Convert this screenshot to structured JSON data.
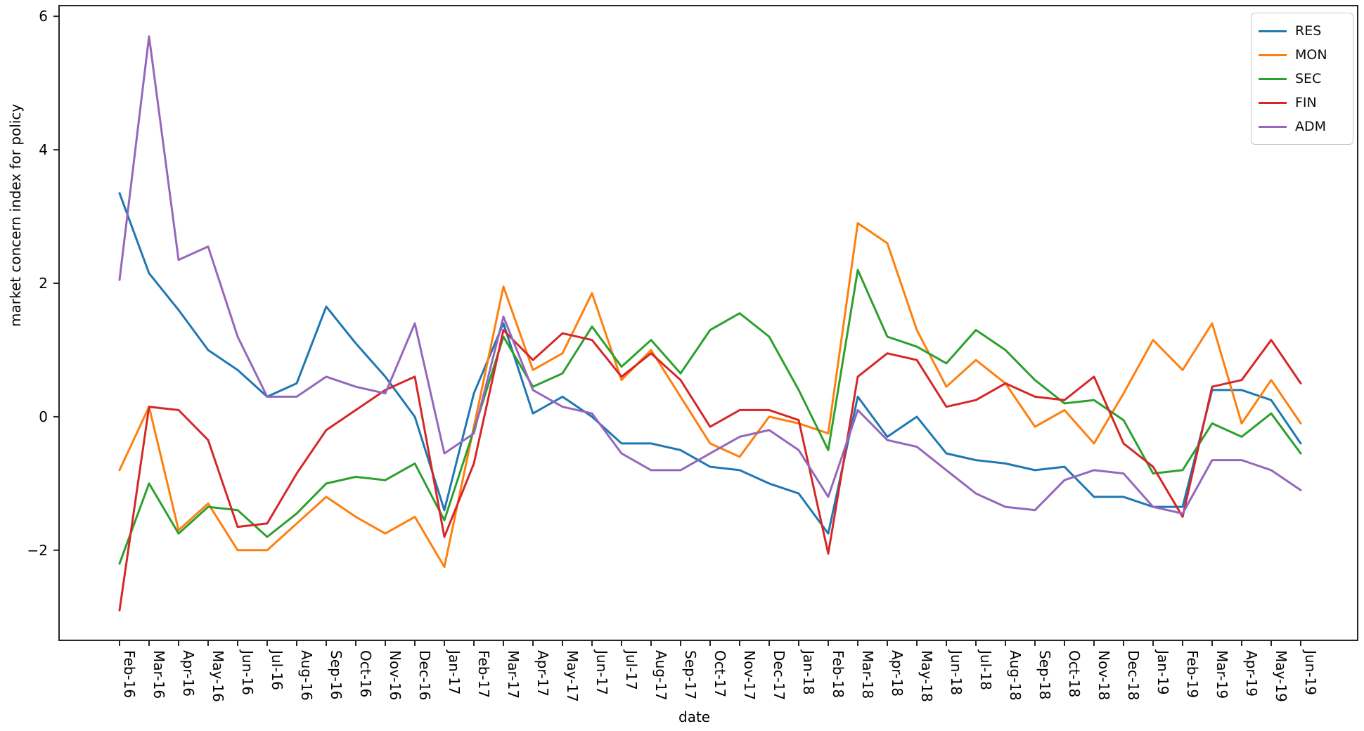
{
  "figure": {
    "kind": "matplotlib-line-chart-screenshot"
  },
  "chart_data": {
    "type": "line",
    "title": "",
    "xlabel": "date",
    "ylabel": "market concern index for policy",
    "grid": false,
    "legend_position": "upper right",
    "ylim": [
      -3.35,
      6.16
    ],
    "yticks": [
      -2,
      0,
      2,
      4,
      6
    ],
    "ytick_labels": [
      "−2",
      "0",
      "2",
      "4",
      "6"
    ],
    "categories": [
      "Feb-16",
      "Mar-16",
      "Apr-16",
      "May-16",
      "Jun-16",
      "Jul-16",
      "Aug-16",
      "Sep-16",
      "Oct-16",
      "Nov-16",
      "Dec-16",
      "Jan-17",
      "Feb-17",
      "Mar-17",
      "Apr-17",
      "May-17",
      "Jun-17",
      "Jul-17",
      "Aug-17",
      "Sep-17",
      "Oct-17",
      "Nov-17",
      "Dec-17",
      "Jan-18",
      "Feb-18",
      "Mar-18",
      "Apr-18",
      "May-18",
      "Jun-18",
      "Jul-18",
      "Aug-18",
      "Sep-18",
      "Oct-18",
      "Nov-18",
      "Dec-18",
      "Jan-19",
      "Feb-19",
      "Mar-19",
      "Apr-19",
      "May-19",
      "Jun-19"
    ],
    "series": [
      {
        "name": "RES",
        "color": "#1f77b4",
        "values": [
          3.35,
          2.15,
          1.6,
          1.0,
          0.7,
          0.3,
          0.5,
          1.65,
          1.1,
          0.6,
          0.0,
          -1.4,
          0.35,
          1.4,
          0.05,
          0.3,
          0.0,
          -0.4,
          -0.4,
          -0.5,
          -0.75,
          -0.8,
          -1.0,
          -1.15,
          -1.75,
          0.3,
          -0.3,
          0.0,
          -0.55,
          -0.65,
          -0.7,
          -0.8,
          -0.75,
          -1.2,
          -1.2,
          -1.35,
          -1.35,
          0.4,
          0.4,
          0.25,
          -0.4
        ]
      },
      {
        "name": "MON",
        "color": "#ff7f0e",
        "values": [
          -0.8,
          0.15,
          -1.7,
          -1.3,
          -2.0,
          -2.0,
          -1.6,
          -1.2,
          -1.5,
          -1.75,
          -1.5,
          -2.25,
          -0.15,
          1.95,
          0.7,
          0.95,
          1.85,
          0.55,
          1.0,
          0.3,
          -0.4,
          -0.6,
          0.0,
          -0.1,
          -0.25,
          2.9,
          2.6,
          1.3,
          0.45,
          0.85,
          0.5,
          -0.15,
          0.1,
          -0.4,
          0.35,
          1.15,
          0.7,
          1.4,
          -0.1,
          0.55,
          -0.1
        ]
      },
      {
        "name": "SEC",
        "color": "#2ca02c",
        "values": [
          -2.2,
          -1.0,
          -1.75,
          -1.35,
          -1.4,
          -1.8,
          -1.45,
          -1.0,
          -0.9,
          -0.95,
          -0.7,
          -1.55,
          -0.2,
          1.2,
          0.45,
          0.65,
          1.35,
          0.75,
          1.15,
          0.65,
          1.3,
          1.55,
          1.2,
          0.4,
          -0.5,
          2.2,
          1.2,
          1.05,
          0.8,
          1.3,
          1.0,
          0.55,
          0.2,
          0.25,
          -0.05,
          -0.85,
          -0.8,
          -0.1,
          -0.3,
          0.05,
          -0.55
        ]
      },
      {
        "name": "FIN",
        "color": "#d62728",
        "values": [
          -2.9,
          0.15,
          0.1,
          -0.35,
          -1.65,
          -1.6,
          -0.85,
          -0.2,
          0.1,
          0.4,
          0.6,
          -1.8,
          -0.7,
          1.3,
          0.85,
          1.25,
          1.15,
          0.6,
          0.95,
          0.55,
          -0.15,
          0.1,
          0.1,
          -0.05,
          -2.05,
          0.6,
          0.95,
          0.85,
          0.15,
          0.25,
          0.5,
          0.3,
          0.25,
          0.6,
          -0.4,
          -0.75,
          -1.5,
          0.45,
          0.55,
          1.15,
          0.5
        ]
      },
      {
        "name": "ADM",
        "color": "#9467bd",
        "values": [
          2.05,
          5.7,
          2.35,
          2.55,
          1.2,
          0.3,
          0.3,
          0.6,
          0.45,
          0.35,
          1.4,
          -0.55,
          -0.25,
          1.5,
          0.4,
          0.15,
          0.05,
          -0.55,
          -0.8,
          -0.8,
          -0.55,
          -0.3,
          -0.2,
          -0.5,
          -1.2,
          0.1,
          -0.35,
          -0.45,
          -0.8,
          -1.15,
          -1.35,
          -1.4,
          -0.95,
          -0.8,
          -0.85,
          -1.35,
          -1.45,
          -0.65,
          -0.65,
          -0.8,
          -1.1
        ]
      }
    ]
  }
}
